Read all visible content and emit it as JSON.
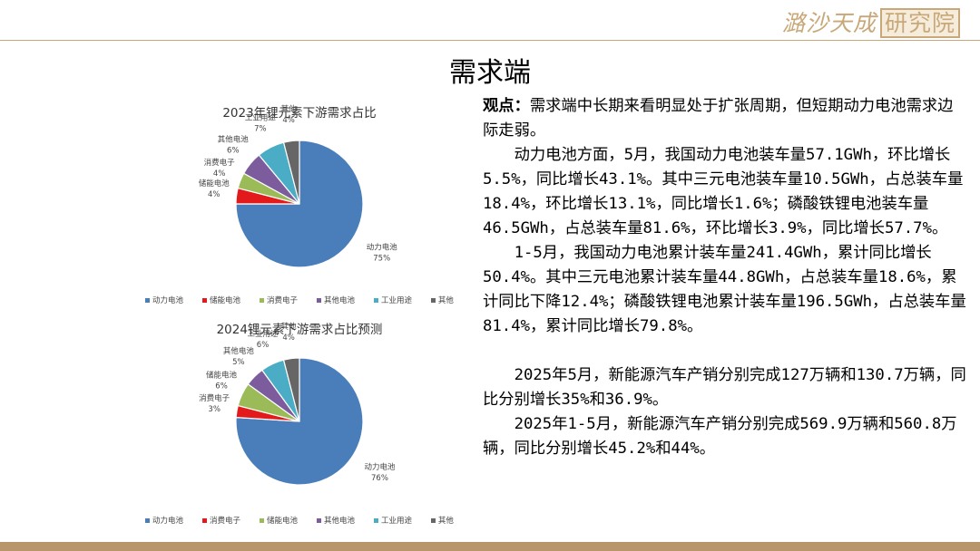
{
  "header": {
    "logo_text": "潞沙天成",
    "logo_boxed": "研究院",
    "title": "需求端"
  },
  "chart_data": [
    {
      "type": "pie",
      "title": "2023年锂元素下游需求占比",
      "categories": [
        "动力电池",
        "储能电池",
        "消费电子",
        "其他电池",
        "工业用途",
        "其他"
      ],
      "values": [
        75,
        4,
        4,
        6,
        7,
        4
      ],
      "data_labels": [
        "75%",
        "4%",
        "4%",
        "6%",
        "7%",
        "4%"
      ],
      "colors": [
        "#4a7ebb",
        "#e31a1c",
        "#9bbb59",
        "#7d5c9e",
        "#4bacc6",
        "#666666"
      ],
      "legend": [
        "动力电池",
        "储能电池",
        "消费电子",
        "其他电池",
        "工业用途",
        "其他"
      ],
      "legend_placement": "bottom"
    },
    {
      "type": "pie",
      "title": "2024锂元素下游需求占比预测",
      "categories": [
        "动力电池",
        "消费电子",
        "储能电池",
        "其他电池",
        "工业用途",
        "其他"
      ],
      "values": [
        76,
        3,
        6,
        5,
        6,
        4
      ],
      "data_labels": [
        "76%",
        "3%",
        "6%",
        "5%",
        "6%",
        "4%"
      ],
      "colors": [
        "#4a7ebb",
        "#e31a1c",
        "#9bbb59",
        "#7d5c9e",
        "#4bacc6",
        "#666666"
      ],
      "legend": [
        "动力电池",
        "消费电子",
        "储能电池",
        "其他电池",
        "工业用途",
        "其他"
      ],
      "legend_placement": "bottom"
    }
  ],
  "text": {
    "viewpoint_label": "观点：",
    "viewpoint": "需求端中长期来看明显处于扩张周期，但短期动力电池需求边际走弱。",
    "para1": "动力电池方面，5月，我国动力电池装车量57.1GWh，环比增长5.5%，同比增长43.1%。其中三元电池装车量10.5GWh，占总装车量18.4%，环比增长13.1%，同比增长1.6%；磷酸铁锂电池装车量46.5GWh，占总装车量81.6%，环比增长3.9%，同比增长57.7%。",
    "para2": "1-5月，我国动力电池累计装车量241.4GWh，累计同比增长50.4%。其中三元电池累计装车量44.8GWh，占总装车量18.6%，累计同比下降12.4%；磷酸铁锂电池累计装车量196.5GWh，占总装车量81.4%，累计同比增长79.8%。",
    "para3": "2025年5月，新能源汽车产销分别完成127万辆和130.7万辆，同比分别增长35%和36.9%。",
    "para4": "2025年1-5月，新能源汽车产销分别完成569.9万辆和560.8万辆，同比分别增长45.2%和44%。"
  }
}
